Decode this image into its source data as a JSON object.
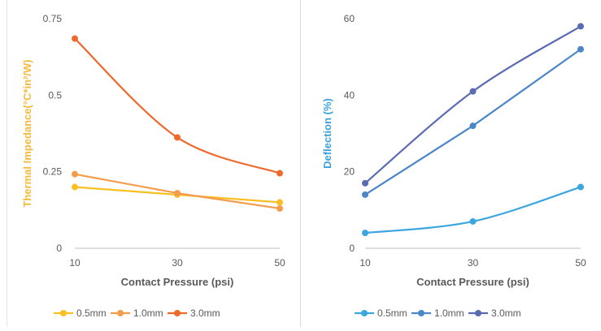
{
  "chart_data": [
    {
      "type": "line",
      "x": [
        10,
        30,
        50
      ],
      "xticks": [
        "10",
        "30",
        "50"
      ],
      "xlabel": "Contact Pressure (psi)",
      "ylabel": "Thermal Impedance(°C*in²/W)",
      "ylabel_color": "#f6b93b",
      "ylim": [
        0,
        0.75
      ],
      "yticks": [
        "0",
        "0.25",
        "0.5",
        "0.75"
      ],
      "legend_position": "bottom",
      "series": [
        {
          "name": "0.5mm",
          "values": [
            0.2,
            0.175,
            0.15
          ],
          "color": "#fbbf24",
          "smooth": false
        },
        {
          "name": "1.0mm",
          "values": [
            0.242,
            0.18,
            0.13
          ],
          "color": "#f39c4b",
          "smooth": false
        },
        {
          "name": "3.0mm",
          "values": [
            0.685,
            0.362,
            0.245
          ],
          "color": "#ee6a2c",
          "smooth": true
        }
      ]
    },
    {
      "type": "line",
      "x": [
        10,
        30,
        50
      ],
      "xticks": [
        "10",
        "30",
        "50"
      ],
      "xlabel": "Contact Pressure (psi)",
      "ylabel": "Deflection (%)",
      "ylabel_color": "#3aa0e0",
      "ylim": [
        0,
        60
      ],
      "yticks": [
        "0",
        "20",
        "40",
        "60"
      ],
      "legend_position": "bottom",
      "series": [
        {
          "name": "0.5mm",
          "values": [
            4,
            7,
            16
          ],
          "color": "#3ba6e0",
          "smooth": true
        },
        {
          "name": "1.0mm",
          "values": [
            14,
            32,
            52
          ],
          "color": "#4a86c8",
          "smooth": false
        },
        {
          "name": "3.0mm",
          "values": [
            17,
            41,
            58
          ],
          "color": "#5b6bb3",
          "smooth": true
        }
      ]
    }
  ]
}
